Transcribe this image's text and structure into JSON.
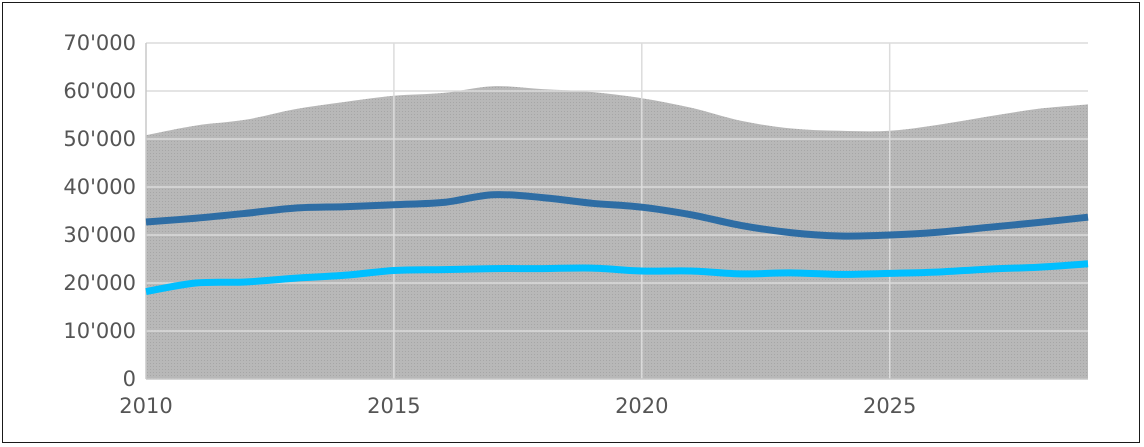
{
  "chart_data": {
    "type": "area",
    "title": "",
    "xlabel": "",
    "ylabel": "",
    "xlim": [
      2010,
      2029
    ],
    "ylim": [
      0,
      70000
    ],
    "grid": true,
    "x_ticks": [
      {
        "value": 2010,
        "label": "2010"
      },
      {
        "value": 2015,
        "label": "2015"
      },
      {
        "value": 2020,
        "label": "2020"
      },
      {
        "value": 2025,
        "label": "2025"
      }
    ],
    "y_ticks": [
      {
        "value": 0,
        "label": "0"
      },
      {
        "value": 10000,
        "label": "10'000"
      },
      {
        "value": 20000,
        "label": "20'000"
      },
      {
        "value": 30000,
        "label": "30'000"
      },
      {
        "value": 40000,
        "label": "40'000"
      },
      {
        "value": 50000,
        "label": "50'000"
      },
      {
        "value": 60000,
        "label": "60'000"
      },
      {
        "value": 70000,
        "label": "70'000"
      }
    ],
    "x": [
      2010,
      2011,
      2012,
      2013,
      2014,
      2015,
      2016,
      2017,
      2018,
      2019,
      2020,
      2021,
      2022,
      2023,
      2024,
      2025,
      2026,
      2027,
      2028,
      2029
    ],
    "series": [
      {
        "type": "area",
        "color": "#b3b3b3",
        "values": [
          50800,
          52800,
          54000,
          56200,
          57700,
          59000,
          59600,
          61000,
          60400,
          59800,
          58500,
          56500,
          53800,
          52200,
          51700,
          51700,
          53000,
          54700,
          56300,
          57200
        ]
      },
      {
        "type": "line",
        "color": "#2e6da4",
        "values": [
          32700,
          33500,
          34500,
          35600,
          35900,
          36300,
          36800,
          38400,
          37800,
          36600,
          35800,
          34200,
          32000,
          30500,
          29800,
          30000,
          30600,
          31600,
          32600,
          33700
        ]
      },
      {
        "type": "line",
        "color": "#00bfff",
        "values": [
          18200,
          20000,
          20200,
          21000,
          21600,
          22600,
          22800,
          23000,
          23000,
          23100,
          22500,
          22500,
          21900,
          22100,
          21800,
          22000,
          22300,
          22900,
          23300,
          24000
        ]
      }
    ]
  }
}
